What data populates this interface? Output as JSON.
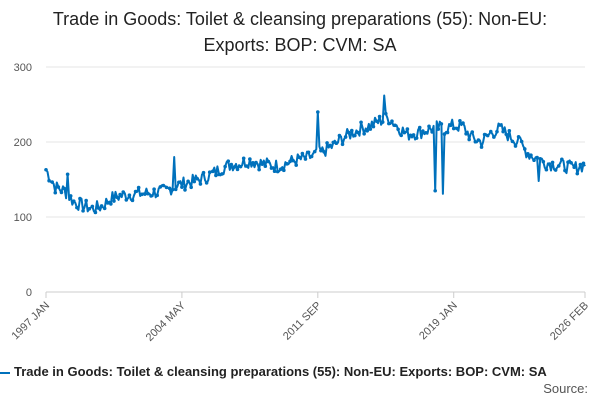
{
  "chart_data": {
    "type": "line",
    "title": "Trade in Goods: Toilet & cleansing preparations (55): Non-EU: Exports: BOP: CVM: SA",
    "xlabel": "",
    "ylabel": "",
    "ylim": [
      0,
      300
    ],
    "yticks": [
      0,
      100,
      200,
      300
    ],
    "xticks": [
      "1997 JAN",
      "2004 MAY",
      "2011 SEP",
      "2019 JAN",
      "2026 FEB"
    ],
    "x_start": "1997 JAN",
    "x_end": "2026 FEB",
    "grid": true,
    "legend_position": "bottom",
    "series_color": "#0071bc",
    "series": [
      {
        "name": "Trade in Goods: Toilet & cleansing preparations (55): Non-EU: Exports: BOP: CVM: SA",
        "yearly_points": [
          [
            "1997 JAN",
            163
          ],
          [
            "1997 JUL",
            140
          ],
          [
            "1998 JAN",
            135
          ],
          [
            "1998 JUL",
            120
          ],
          [
            "1999 JAN",
            115
          ],
          [
            "1999 JUL",
            111
          ],
          [
            "2000 JAN",
            114
          ],
          [
            "2000 JUL",
            125
          ],
          [
            "2001 JAN",
            128
          ],
          [
            "2001 JUL",
            130
          ],
          [
            "2002 JAN",
            131
          ],
          [
            "2002 JUL",
            132
          ],
          [
            "2003 JAN",
            133
          ],
          [
            "2003 JUL",
            135
          ],
          [
            "2004 JAN",
            142
          ],
          [
            "2004 JUL",
            145
          ],
          [
            "2005 JAN",
            148
          ],
          [
            "2005 JUL",
            152
          ],
          [
            "2006 JAN",
            158
          ],
          [
            "2006 JUL",
            165
          ],
          [
            "2007 JAN",
            170
          ],
          [
            "2007 JUL",
            172
          ],
          [
            "2008 JAN",
            175
          ],
          [
            "2008 JUL",
            172
          ],
          [
            "2009 JAN",
            170
          ],
          [
            "2009 JUL",
            168
          ],
          [
            "2010 JAN",
            172
          ],
          [
            "2010 JUL",
            176
          ],
          [
            "2011 JAN",
            178
          ],
          [
            "2011 JUL",
            182
          ],
          [
            "2012 JAN",
            188
          ],
          [
            "2012 JUL",
            195
          ],
          [
            "2013 JAN",
            205
          ],
          [
            "2013 JUL",
            212
          ],
          [
            "2014 JAN",
            218
          ],
          [
            "2014 JUL",
            222
          ],
          [
            "2015 JAN",
            228
          ],
          [
            "2015 JUL",
            232
          ],
          [
            "2016 JAN",
            220
          ],
          [
            "2016 JUL",
            210
          ],
          [
            "2017 JAN",
            212
          ],
          [
            "2017 JUL",
            215
          ],
          [
            "2018 JAN",
            220
          ],
          [
            "2018 JUL",
            218
          ],
          [
            "2019 JAN",
            222
          ],
          [
            "2019 JUL",
            220
          ],
          [
            "2020 JAN",
            205
          ],
          [
            "2020 JUL",
            200
          ],
          [
            "2021 JAN",
            212
          ],
          [
            "2021 JUL",
            218
          ],
          [
            "2022 JAN",
            208
          ],
          [
            "2022 JUL",
            200
          ],
          [
            "2023 JAN",
            185
          ],
          [
            "2023 JUL",
            178
          ],
          [
            "2024 JAN",
            172
          ],
          [
            "2024 JUL",
            170
          ],
          [
            "2025 JAN",
            168
          ],
          [
            "2025 JUL",
            165
          ],
          [
            "2026 FEB",
            170
          ]
        ],
        "spikes": [
          [
            "1997 JAN",
            163
          ],
          [
            "1998 MAR",
            157
          ],
          [
            "2003 DEC",
            180
          ],
          [
            "2011 SEP",
            240
          ],
          [
            "2015 APR",
            262
          ],
          [
            "2018 JAN",
            135
          ],
          [
            "2018 JUN",
            131
          ],
          [
            "2022 JUL",
            207
          ],
          [
            "2023 AUG",
            148
          ]
        ]
      }
    ]
  },
  "legend": {
    "label": "Trade in Goods: Toilet & cleansing preparations (55): Non-EU: Exports: BOP: CVM: SA"
  },
  "source": {
    "label": "Source:"
  }
}
